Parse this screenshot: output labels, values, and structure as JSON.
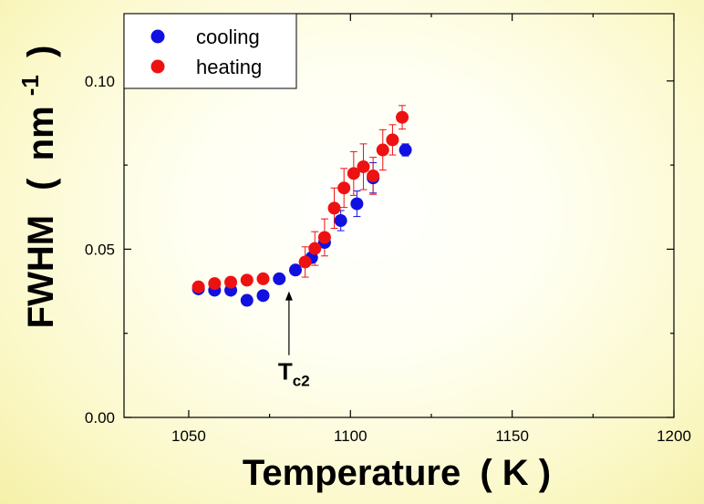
{
  "chart_data": {
    "type": "scatter",
    "xlabel": "Temperature",
    "xlabel_unit": "( K )",
    "ylabel": "FWHM",
    "ylabel_unit_open": "(",
    "ylabel_unit": "nm",
    "ylabel_unit_sup": "-1",
    "ylabel_unit_close": ")",
    "xlim": [
      1030,
      1200
    ],
    "ylim": [
      0.0,
      0.12
    ],
    "xticks": [
      1050,
      1100,
      1150,
      1200
    ],
    "xtick_labels": [
      "1050",
      "1100",
      "1150",
      "1200"
    ],
    "yticks": [
      0.0,
      0.05,
      0.1
    ],
    "ytick_labels": [
      "0.00",
      "0.05",
      "0.10"
    ],
    "legend_position": "top-left",
    "series": [
      {
        "name": "cooling",
        "color": "#1010e0",
        "points": [
          {
            "x": 1053,
            "y": 0.0382,
            "err": 0
          },
          {
            "x": 1058,
            "y": 0.0378,
            "err": 0
          },
          {
            "x": 1063,
            "y": 0.0378,
            "err": 0
          },
          {
            "x": 1068,
            "y": 0.0348,
            "err": 0
          },
          {
            "x": 1073,
            "y": 0.0362,
            "err": 0
          },
          {
            "x": 1078,
            "y": 0.0412,
            "err": 0
          },
          {
            "x": 1083,
            "y": 0.0438,
            "err": 0
          },
          {
            "x": 1088,
            "y": 0.0475,
            "err": 0.0012
          },
          {
            "x": 1092,
            "y": 0.052,
            "err": 0.0015
          },
          {
            "x": 1097,
            "y": 0.0585,
            "err": 0.003
          },
          {
            "x": 1102,
            "y": 0.0635,
            "err": 0.0038
          },
          {
            "x": 1107,
            "y": 0.0712,
            "err": 0.0045
          },
          {
            "x": 1117,
            "y": 0.0795,
            "err": 0.0018
          }
        ]
      },
      {
        "name": "heating",
        "color": "#ee1111",
        "points": [
          {
            "x": 1053,
            "y": 0.0388,
            "err": 0
          },
          {
            "x": 1058,
            "y": 0.0398,
            "err": 0
          },
          {
            "x": 1063,
            "y": 0.0402,
            "err": 0
          },
          {
            "x": 1068,
            "y": 0.0408,
            "err": 0
          },
          {
            "x": 1073,
            "y": 0.0412,
            "err": 0
          },
          {
            "x": 1086,
            "y": 0.0462,
            "err": 0.0045
          },
          {
            "x": 1089,
            "y": 0.0502,
            "err": 0.005
          },
          {
            "x": 1092,
            "y": 0.0535,
            "err": 0.0055
          },
          {
            "x": 1095,
            "y": 0.0622,
            "err": 0.006
          },
          {
            "x": 1098,
            "y": 0.0682,
            "err": 0.0058
          },
          {
            "x": 1101,
            "y": 0.0725,
            "err": 0.0065
          },
          {
            "x": 1104,
            "y": 0.0745,
            "err": 0.0068
          },
          {
            "x": 1107,
            "y": 0.0718,
            "err": 0.0055
          },
          {
            "x": 1110,
            "y": 0.0795,
            "err": 0.006
          },
          {
            "x": 1113,
            "y": 0.0825,
            "err": 0.0045
          },
          {
            "x": 1116,
            "y": 0.0892,
            "err": 0.0035
          }
        ]
      }
    ],
    "annotations": [
      {
        "text": "T",
        "subscript": "c2",
        "x": 1081,
        "y": 0.0375,
        "label_y": 0.012
      }
    ]
  }
}
